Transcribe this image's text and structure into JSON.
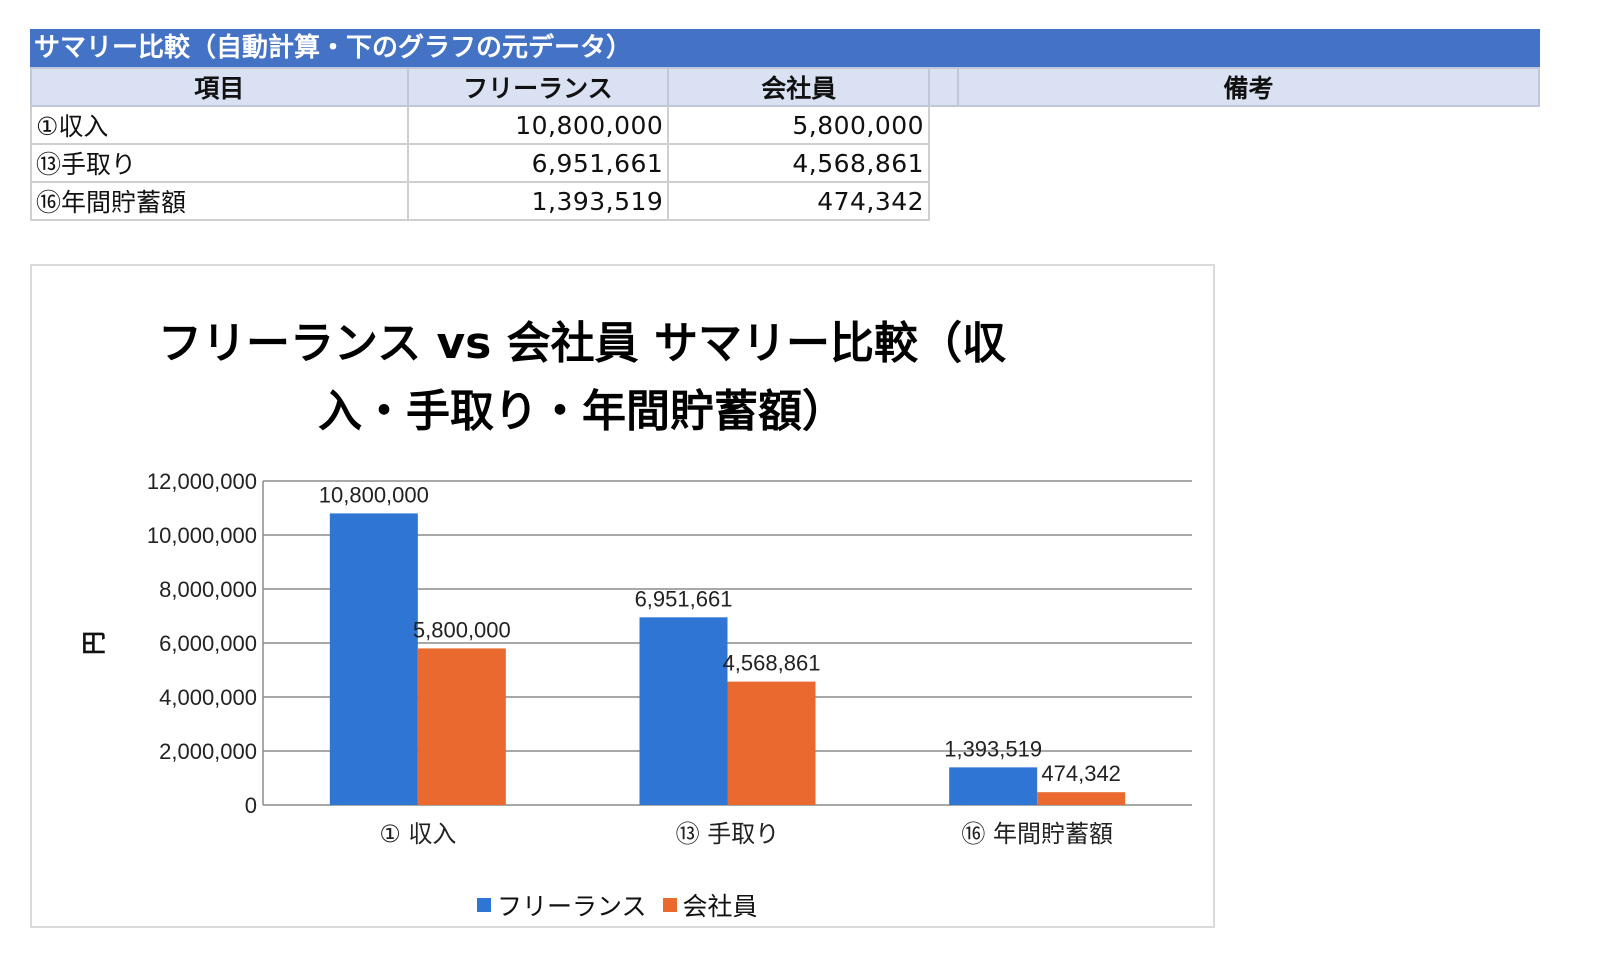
{
  "table": {
    "title": "サマリー比較（自動計算・下のグラフの元データ）",
    "headers": {
      "item": "項目",
      "freelance": "フリーランス",
      "employee": "会社員",
      "note": "備考"
    },
    "rows": [
      {
        "label": "①収入",
        "freelance": "10,800,000",
        "employee": "5,800,000"
      },
      {
        "label": "⑬手取り",
        "freelance": "6,951,661",
        "employee": "4,568,861"
      },
      {
        "label": "⑯年間貯蓄額",
        "freelance": "1,393,519",
        "employee": "474,342"
      }
    ]
  },
  "chart_data": {
    "type": "bar",
    "title_line1": "フリーランス vs 会社員 サマリー比較（収",
    "title_line2": "入・手取り・年間貯蓄額）",
    "ylabel": "円",
    "ylim": [
      0,
      12000000
    ],
    "yticks": [
      "0",
      "2,000,000",
      "4,000,000",
      "6,000,000",
      "8,000,000",
      "10,000,000",
      "12,000,000"
    ],
    "grid": true,
    "legend_position": "bottom",
    "categories": [
      "① 収入",
      "⑬ 手取り",
      "⑯ 年間貯蓄額"
    ],
    "series": [
      {
        "name": "フリーランス",
        "color": "#2e75d4",
        "values": [
          10800000,
          6951661,
          1393519
        ],
        "labels": [
          "10,800,000",
          "6,951,661",
          "1,393,519"
        ]
      },
      {
        "name": "会社員",
        "color": "#e9692f",
        "values": [
          5800000,
          4568861,
          474342
        ],
        "labels": [
          "5,800,000",
          "4,568,861",
          "474,342"
        ]
      }
    ]
  }
}
